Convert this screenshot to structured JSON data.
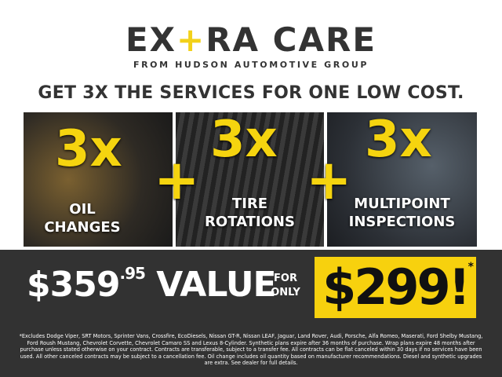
{
  "logo": {
    "part1": "EX",
    "plus": "+",
    "part2": "RA CARE",
    "tagline": "FROM HUDSON AUTOMOTIVE GROUP"
  },
  "headline": "GET 3X THE SERVICES FOR ONE LOW COST.",
  "services": [
    {
      "count": "3x",
      "label_line1": "OIL",
      "label_line2": "CHANGES"
    },
    {
      "count": "3x",
      "label_line1": "TIRE",
      "label_line2": "ROTATIONS"
    },
    {
      "count": "3x",
      "label_line1": "MULTIPOINT",
      "label_line2": "INSPECTIONS"
    }
  ],
  "plus_sign": "+",
  "pricing": {
    "value_dollars": "$359",
    "value_cents": ".95",
    "value_word": "VALUE",
    "for": "FOR",
    "only": "ONLY",
    "price": "$299!",
    "asterisk": "*"
  },
  "disclaimer": "*Excludes Dodge Viper, SRT Motors, Sprinter Vans, Crossfire, EcoDiesels, Nissan GT-R, Nissan LEAF, Jaguar, Land Rover, Audi, Porsche, Alfa Romeo, Maserati, Ford Shelby Mustang, Ford Roush Mustang, Chevrolet Corvette, Chevrolet Camaro SS and Lexus 8-Cylinder. Synthetic plans expire after 36 months of purchase. Wrap plans expire 48 months after purchase unless stated otherwise on your contract. Contracts are transferable, subject to a transfer fee. All contracts can be flat canceled within 30 days if no services have been used. All other canceled contracts may be subject to a cancellation fee. Oil change includes oil quantity based on manufacturer recommendations. Diesel and synthetic upgrades are extra. See dealer for full details.",
  "colors": {
    "accent": "#f5d40f",
    "dark": "#323232",
    "text": "#333333"
  }
}
